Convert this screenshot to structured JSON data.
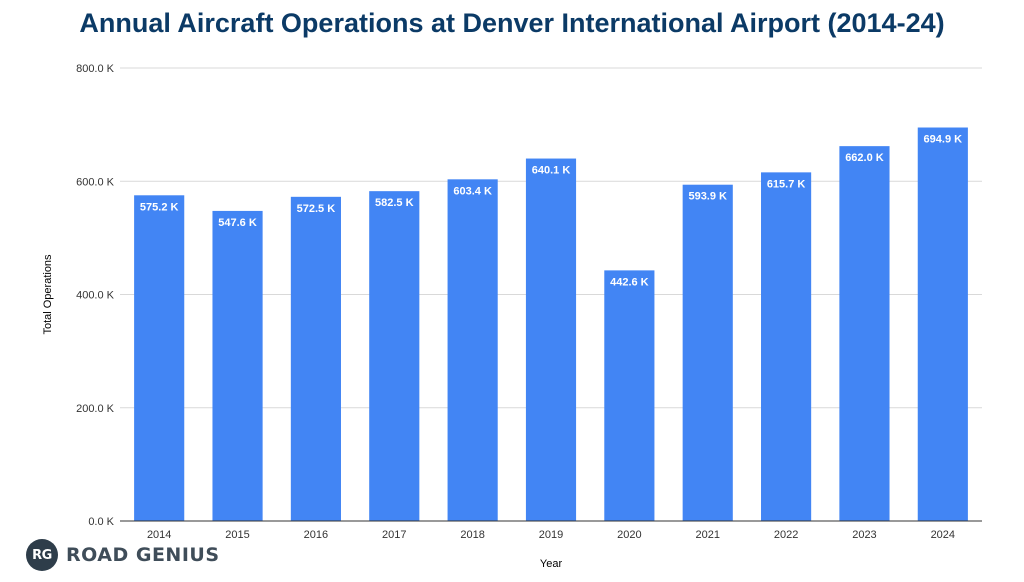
{
  "chart_data": {
    "type": "bar",
    "title": "Annual Aircraft Operations at Denver International Airport (2014-24)",
    "xlabel": "Year",
    "ylabel": "Total Operations",
    "categories": [
      "2014",
      "2015",
      "2016",
      "2017",
      "2018",
      "2019",
      "2020",
      "2021",
      "2022",
      "2023",
      "2024"
    ],
    "values": [
      575.2,
      547.6,
      572.5,
      582.5,
      603.4,
      640.1,
      442.6,
      593.9,
      615.7,
      662.0,
      694.9
    ],
    "data_labels": [
      "575.2 K",
      "547.6 K",
      "572.5 K",
      "582.5 K",
      "603.4 K",
      "640.1 K",
      "442.6 K",
      "593.9 K",
      "615.7 K",
      "662.0 K",
      "694.9 K"
    ],
    "ylim": [
      0,
      800
    ],
    "y_ticks": [
      0,
      200,
      400,
      600,
      800
    ],
    "y_tick_labels": [
      "0.0 K",
      "200.0 K",
      "400.0 K",
      "600.0 K",
      "800.0 K"
    ],
    "grid": true,
    "legend": "none",
    "colors": {
      "bar": "#4285f4",
      "title": "#0b3a66",
      "grid": "#d9d9d9",
      "axis": "#333333"
    }
  },
  "brand": {
    "badge": "RG",
    "name": "ROAD GENIUS",
    "logo_icon": "road-genius-logo-icon"
  }
}
